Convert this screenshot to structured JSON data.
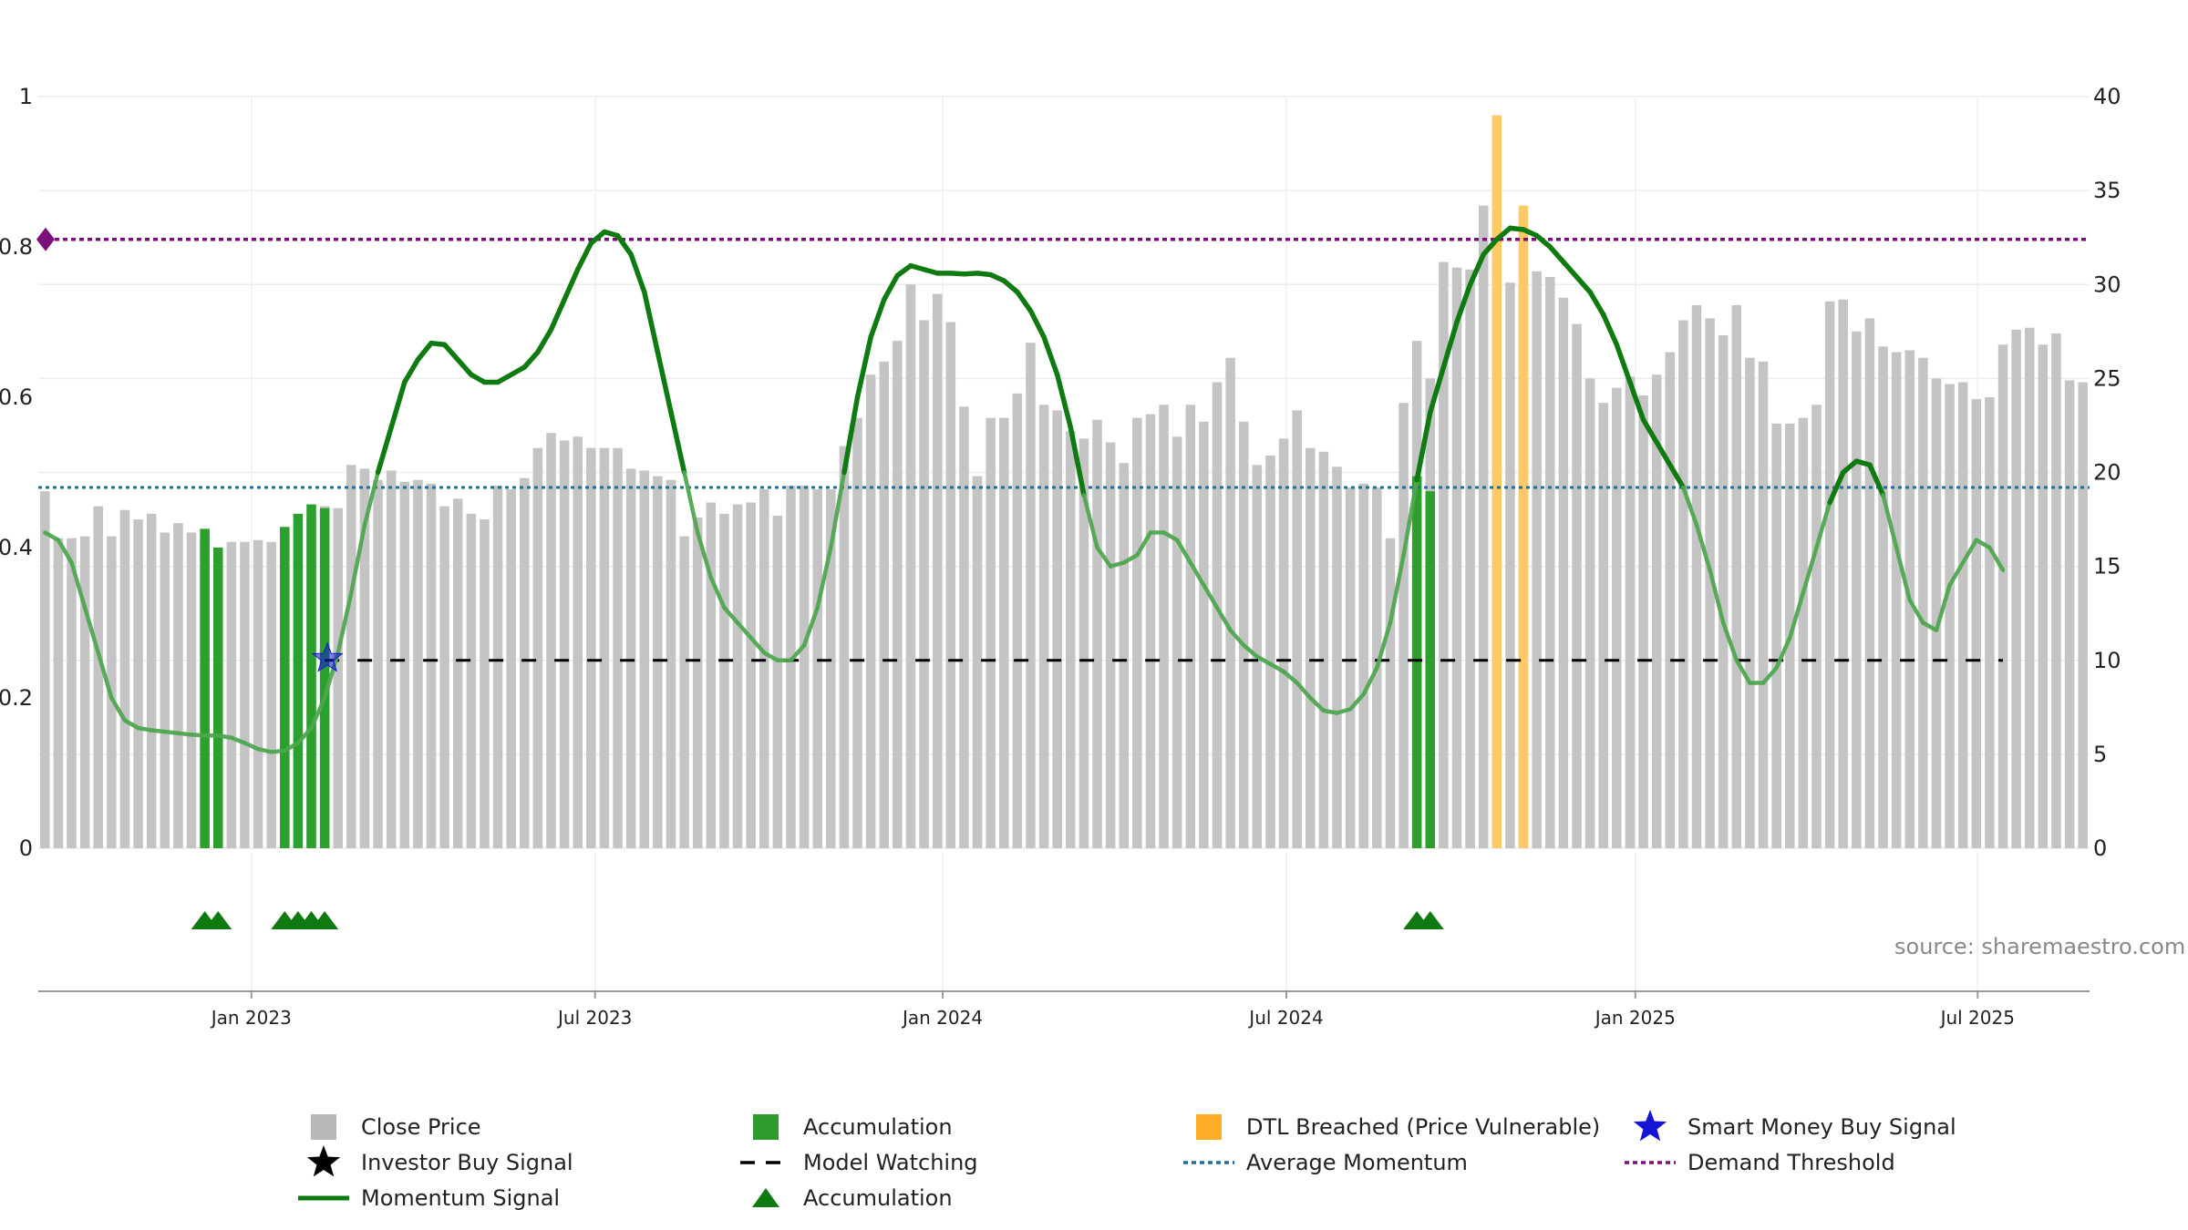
{
  "chart_data": {
    "type": "bar",
    "title": "",
    "xlabel": "",
    "ylabel": "",
    "left_axis": {
      "range": [
        0,
        1
      ],
      "ticks": [
        0,
        0.2,
        0.4,
        0.6,
        0.8,
        1
      ],
      "tick_labels": [
        "0",
        "0.2",
        "0.4",
        "0.6",
        "0.8",
        "1"
      ]
    },
    "right_axis": {
      "range": [
        0,
        40
      ],
      "ticks": [
        0,
        5,
        10,
        15,
        20,
        25,
        30,
        35,
        40
      ],
      "tick_labels": [
        "0",
        "5",
        "10",
        "15",
        "20",
        "25",
        "30",
        "35",
        "40"
      ]
    },
    "x_ticks": [
      "Jan 2023",
      "Jul 2023",
      "Jan 2024",
      "Jul 2024",
      "Jan 2025",
      "Jul 2025"
    ],
    "x_tick_weeks": [
      15.5,
      41.3,
      67.4,
      93.2,
      119.4,
      145.1
    ],
    "grid": true,
    "source": "source: sharemaestro.com",
    "close_price": [
      19,
      16.5,
      16.5,
      16.6,
      18.2,
      16.6,
      18,
      17.5,
      17.8,
      16.8,
      17.3,
      16.8,
      16.8,
      16,
      16.3,
      16.3,
      16.4,
      16.3,
      17,
      17.1,
      17.8,
      18.2,
      18.1,
      20.4,
      20.2,
      19.6,
      20.1,
      19.5,
      19.6,
      19.4,
      18.2,
      18.6,
      17.8,
      17.5,
      19.3,
      19.1,
      19.7,
      21.3,
      22.1,
      21.7,
      21.9,
      21.3,
      21.3,
      21.3,
      20.2,
      20.1,
      19.8,
      19.6,
      16.6,
      17.6,
      18.4,
      17.8,
      18.3,
      18.4,
      19.1,
      17.7,
      19.3,
      19.3,
      19.1,
      19.1,
      21.4,
      22.9,
      25.2,
      25.9,
      27,
      30,
      28.1,
      29.5,
      28,
      23.5,
      19.8,
      22.9,
      22.9,
      24.2,
      26.9,
      23.6,
      23.3,
      22.2,
      21.8,
      22.8,
      21.6,
      20.5,
      22.9,
      23.1,
      23.6,
      21.9,
      23.6,
      22.7,
      24.8,
      26.1,
      22.7,
      20.4,
      20.9,
      21.8,
      23.3,
      21.3,
      21.1,
      20.3,
      19.2,
      19.4,
      19.2,
      16.5,
      23.7,
      27,
      25,
      31.2,
      30.9,
      30.8,
      34.2,
      31.3,
      30.1,
      30,
      30.7,
      30.4,
      29.3,
      27.9,
      25,
      23.7,
      24.5,
      25.1,
      24.1,
      25.2,
      26.4,
      28.1,
      28.9,
      28.2,
      27.3,
      28.9,
      26.1,
      25.9,
      22.6,
      22.6,
      22.9,
      23.6,
      29.1,
      29.2,
      27.5,
      28.2,
      26.7,
      26.4,
      26.5,
      26.1,
      25,
      24.7,
      24.8,
      23.9,
      24,
      26.8,
      27.6,
      27.7,
      26.8,
      27.4,
      24.9,
      24.8
    ],
    "accumulation_bars": [
      {
        "week": 12,
        "value": 17
      },
      {
        "week": 13,
        "value": 16
      },
      {
        "week": 18,
        "value": 17.1
      },
      {
        "week": 19,
        "value": 17.8
      },
      {
        "week": 20,
        "value": 18.3
      },
      {
        "week": 21,
        "value": 18.1
      },
      {
        "week": 103,
        "value": 19.8
      },
      {
        "week": 104,
        "value": 19
      }
    ],
    "dtl_breached_bars": [
      {
        "week": 109,
        "value": 39
      },
      {
        "week": 111,
        "value": 34.2
      }
    ],
    "momentum_signal": [
      [
        0,
        0.42
      ],
      [
        1,
        0.41
      ],
      [
        2,
        0.38
      ],
      [
        3,
        0.32
      ],
      [
        4,
        0.26
      ],
      [
        5,
        0.2
      ],
      [
        6,
        0.17
      ],
      [
        7,
        0.16
      ],
      [
        8,
        0.157
      ],
      [
        9,
        0.155
      ],
      [
        10,
        0.153
      ],
      [
        11,
        0.151
      ],
      [
        12,
        0.15
      ],
      [
        13,
        0.15
      ],
      [
        14,
        0.147
      ],
      [
        15,
        0.14
      ],
      [
        16,
        0.132
      ],
      [
        17,
        0.128
      ],
      [
        18,
        0.13
      ],
      [
        19,
        0.14
      ],
      [
        20,
        0.16
      ],
      [
        21,
        0.2
      ],
      [
        22,
        0.26
      ],
      [
        23,
        0.34
      ],
      [
        24,
        0.43
      ],
      [
        25,
        0.5
      ],
      [
        26,
        0.56
      ],
      [
        27,
        0.62
      ],
      [
        28,
        0.65
      ],
      [
        29,
        0.672
      ],
      [
        30,
        0.67
      ],
      [
        31,
        0.65
      ],
      [
        32,
        0.63
      ],
      [
        33,
        0.62
      ],
      [
        34,
        0.62
      ],
      [
        35,
        0.63
      ],
      [
        36,
        0.64
      ],
      [
        37,
        0.66
      ],
      [
        38,
        0.69
      ],
      [
        39,
        0.73
      ],
      [
        40,
        0.77
      ],
      [
        41,
        0.805
      ],
      [
        42,
        0.82
      ],
      [
        43,
        0.815
      ],
      [
        44,
        0.79
      ],
      [
        45,
        0.74
      ],
      [
        46,
        0.66
      ],
      [
        47,
        0.58
      ],
      [
        48,
        0.5
      ],
      [
        49,
        0.42
      ],
      [
        50,
        0.36
      ],
      [
        51,
        0.32
      ],
      [
        52,
        0.3
      ],
      [
        53,
        0.28
      ],
      [
        54,
        0.26
      ],
      [
        55,
        0.25
      ],
      [
        56,
        0.25
      ],
      [
        57,
        0.27
      ],
      [
        58,
        0.32
      ],
      [
        59,
        0.4
      ],
      [
        60,
        0.5
      ],
      [
        61,
        0.6
      ],
      [
        62,
        0.68
      ],
      [
        63,
        0.73
      ],
      [
        64,
        0.762
      ],
      [
        65,
        0.775
      ],
      [
        66,
        0.77
      ],
      [
        67,
        0.765
      ],
      [
        68,
        0.765
      ],
      [
        69,
        0.764
      ],
      [
        70,
        0.765
      ],
      [
        71,
        0.763
      ],
      [
        72,
        0.755
      ],
      [
        73,
        0.74
      ],
      [
        74,
        0.715
      ],
      [
        75,
        0.68
      ],
      [
        76,
        0.63
      ],
      [
        77,
        0.56
      ],
      [
        78,
        0.47
      ],
      [
        79,
        0.4
      ],
      [
        80,
        0.375
      ],
      [
        81,
        0.38
      ],
      [
        82,
        0.39
      ],
      [
        83,
        0.42
      ],
      [
        84,
        0.42
      ],
      [
        85,
        0.41
      ],
      [
        86,
        0.38
      ],
      [
        87,
        0.35
      ],
      [
        88,
        0.32
      ],
      [
        89,
        0.29
      ],
      [
        90,
        0.27
      ],
      [
        91,
        0.255
      ],
      [
        92,
        0.245
      ],
      [
        93,
        0.235
      ],
      [
        94,
        0.22
      ],
      [
        95,
        0.2
      ],
      [
        96,
        0.183
      ],
      [
        97,
        0.18
      ],
      [
        98,
        0.185
      ],
      [
        99,
        0.205
      ],
      [
        100,
        0.24
      ],
      [
        101,
        0.3
      ],
      [
        102,
        0.39
      ],
      [
        103,
        0.49
      ],
      [
        104,
        0.58
      ],
      [
        105,
        0.64
      ],
      [
        106,
        0.7
      ],
      [
        107,
        0.75
      ],
      [
        108,
        0.79
      ],
      [
        109,
        0.81
      ],
      [
        110,
        0.825
      ],
      [
        111,
        0.823
      ],
      [
        112,
        0.815
      ],
      [
        113,
        0.8
      ],
      [
        114,
        0.78
      ],
      [
        115,
        0.76
      ],
      [
        116,
        0.74
      ],
      [
        117,
        0.71
      ],
      [
        118,
        0.67
      ],
      [
        119,
        0.62
      ],
      [
        120,
        0.57
      ],
      [
        121,
        0.54
      ],
      [
        122,
        0.51
      ],
      [
        123,
        0.48
      ],
      [
        124,
        0.43
      ],
      [
        125,
        0.37
      ],
      [
        126,
        0.3
      ],
      [
        127,
        0.25
      ],
      [
        128,
        0.22
      ],
      [
        129,
        0.22
      ],
      [
        130,
        0.24
      ],
      [
        131,
        0.28
      ],
      [
        132,
        0.34
      ],
      [
        133,
        0.4
      ],
      [
        134,
        0.46
      ],
      [
        135,
        0.5
      ],
      [
        136,
        0.515
      ],
      [
        137,
        0.51
      ],
      [
        138,
        0.47
      ],
      [
        139,
        0.4
      ],
      [
        140,
        0.33
      ],
      [
        141,
        0.3
      ],
      [
        142,
        0.29
      ],
      [
        143,
        0.35
      ],
      [
        144,
        0.38
      ],
      [
        145,
        0.41
      ],
      [
        146,
        0.4
      ],
      [
        147,
        0.37
      ]
    ],
    "average_momentum": 0.48,
    "demand_threshold": 0.81,
    "model_watching": {
      "value": 0.25,
      "from_week": 21,
      "to_week": 147
    },
    "smart_money_buy_signals": [
      {
        "week": 21,
        "value": 0.25
      }
    ],
    "accumulation_markers": [
      12,
      13,
      18,
      19,
      20,
      21,
      103,
      104
    ],
    "colors": {
      "close_price": "#c4c4c4",
      "accumulation": "#2ca02c",
      "dtl_breached": "#ffc966",
      "momentum": "#0f7a0f",
      "momentum_faded": "#4fa64f",
      "model_watching": "#000000",
      "average_momentum": "#1f6f9e",
      "demand_threshold": "#7b0f7b",
      "smart_money": "#1515d6",
      "investor_buy": "#000000",
      "marker": "#0f7a0f"
    },
    "legend": [
      {
        "key": "close",
        "label": "Close Price",
        "symbol": "square",
        "color": "#b8b8b8"
      },
      {
        "key": "accum-bar",
        "label": "Accumulation",
        "symbol": "square",
        "color": "#2c9a2c"
      },
      {
        "key": "dtl",
        "label": "DTL Breached (Price Vulnerable)",
        "symbol": "square",
        "color": "#ffae28"
      },
      {
        "key": "smart",
        "label": "Smart Money Buy Signal",
        "symbol": "star",
        "color": "#1515d6"
      },
      {
        "key": "investor",
        "label": "Investor Buy Signal",
        "symbol": "star",
        "color": "#000000"
      },
      {
        "key": "watching",
        "label": "Model Watching",
        "symbol": "dash",
        "color": "#000000"
      },
      {
        "key": "avg",
        "label": "Average Momentum",
        "symbol": "dot",
        "color": "#1f6f9e"
      },
      {
        "key": "threshold",
        "label": "Demand Threshold",
        "symbol": "dot",
        "color": "#7b0f7b"
      },
      {
        "key": "momentum",
        "label": "Momentum Signal",
        "symbol": "line",
        "color": "#0f7a0f"
      },
      {
        "key": "accum-marker",
        "label": "Accumulation",
        "symbol": "triangle",
        "color": "#0f7a0f"
      }
    ]
  }
}
